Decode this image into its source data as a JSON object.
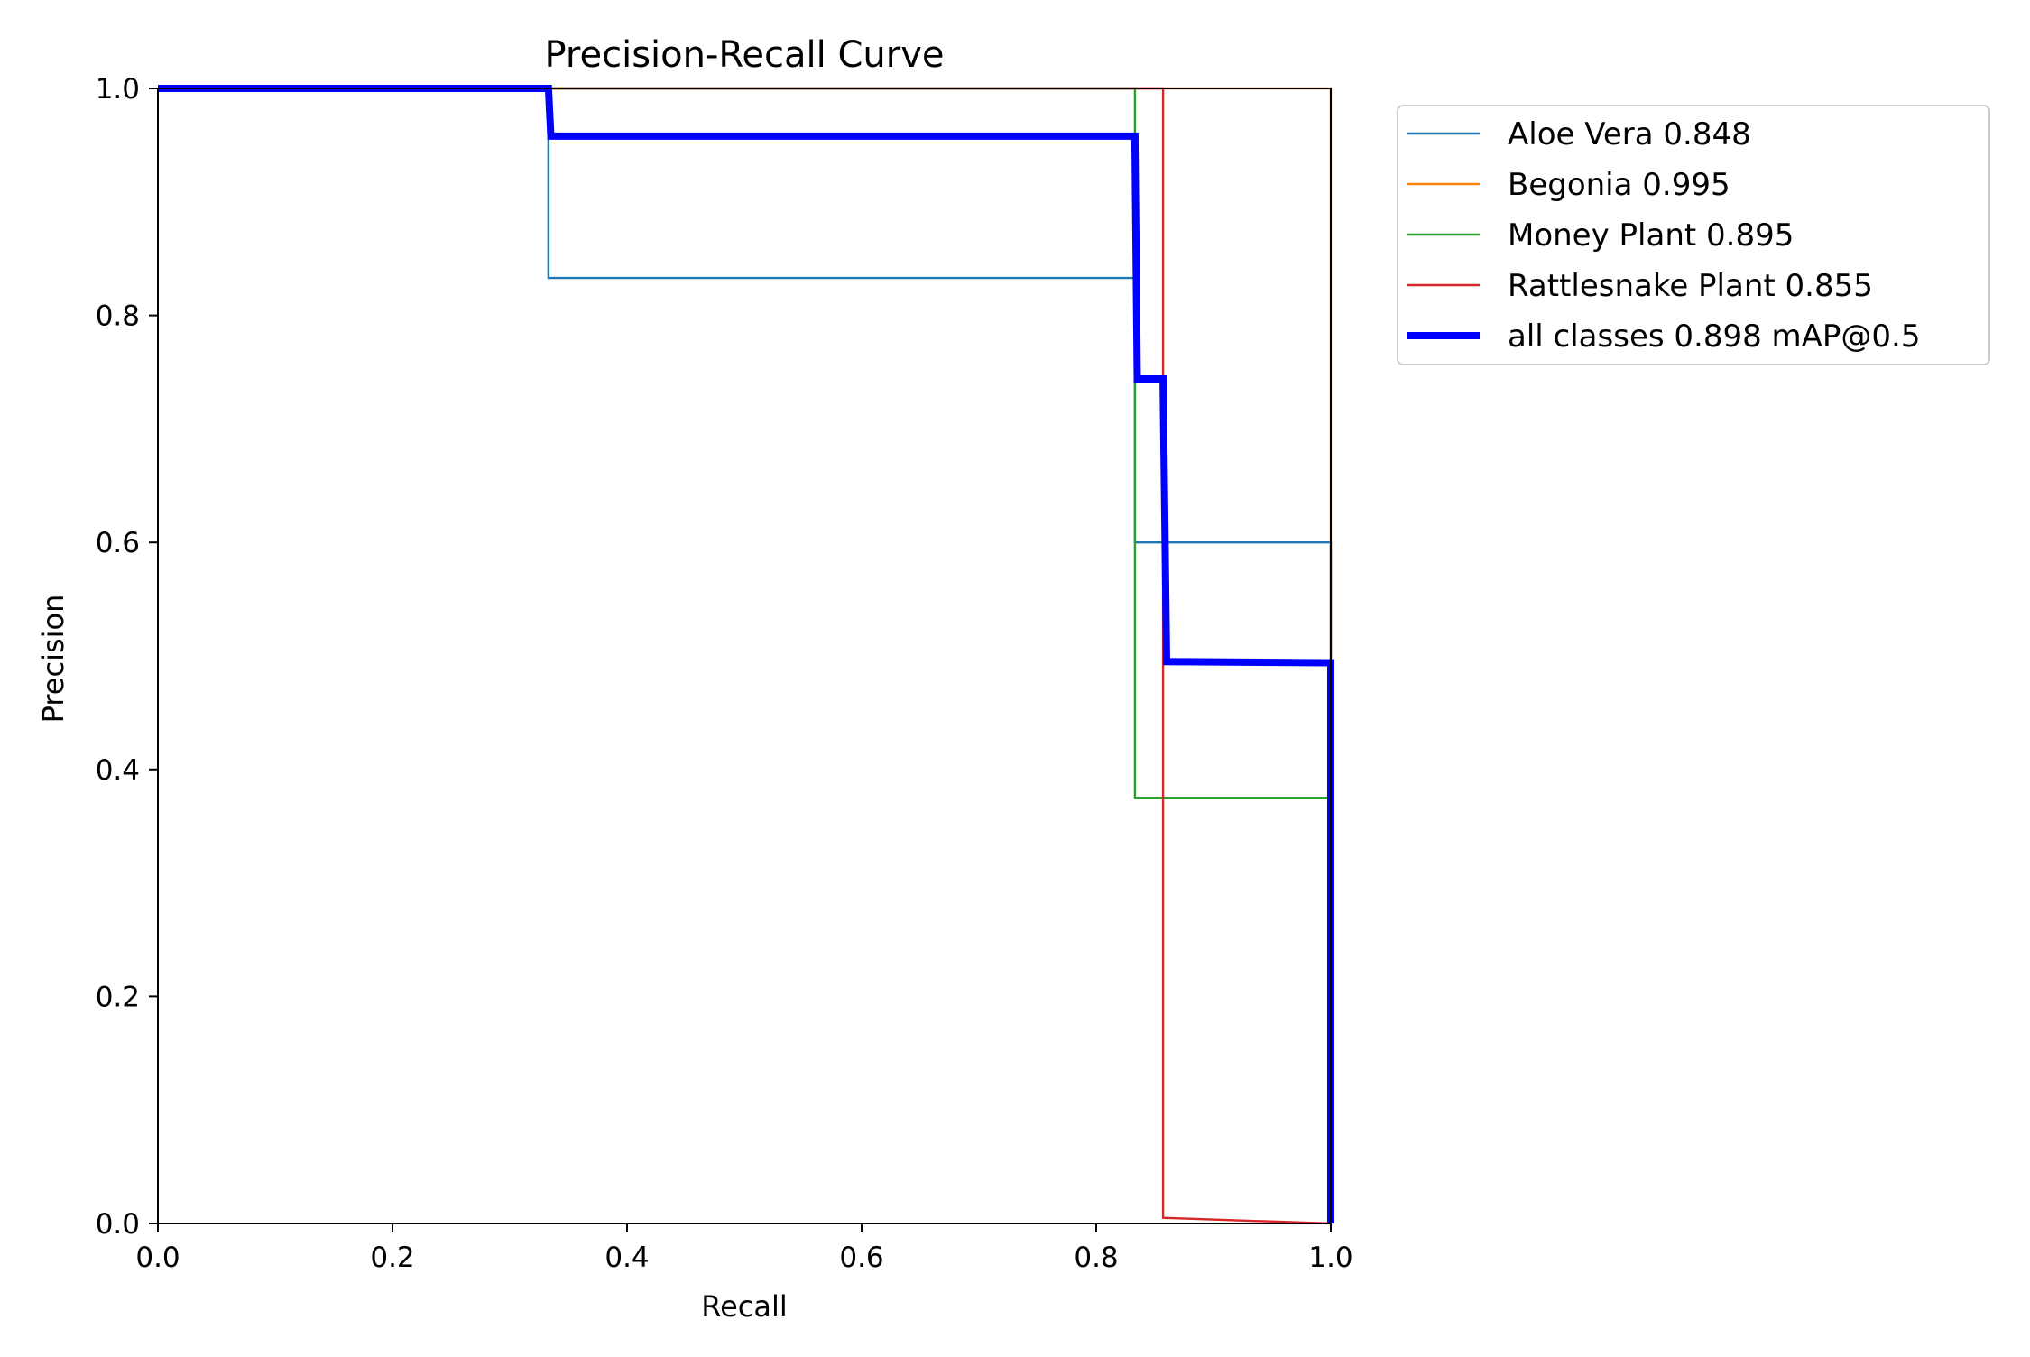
{
  "chart_data": {
    "type": "line",
    "title": "Precision-Recall Curve",
    "xlabel": "Recall",
    "ylabel": "Precision",
    "xlim": [
      0.0,
      1.0
    ],
    "ylim": [
      0.0,
      1.0
    ],
    "xticks": [
      "0.0",
      "0.2",
      "0.4",
      "0.6",
      "0.8",
      "1.0"
    ],
    "yticks": [
      "0.0",
      "0.2",
      "0.4",
      "0.6",
      "0.8",
      "1.0"
    ],
    "grid": false,
    "legend_position": "outside-right-top",
    "series": [
      {
        "name": "Aloe Vera 0.848",
        "color": "#1f77b4",
        "style": "thin",
        "x": [
          0.0,
          0.333,
          0.333,
          0.833,
          0.833,
          1.0,
          1.0
        ],
        "y": [
          1.0,
          1.0,
          0.833,
          0.833,
          0.6,
          0.6,
          0.0
        ]
      },
      {
        "name": "Begonia 0.995",
        "color": "#ff7f0e",
        "style": "thin",
        "x": [
          0.0,
          1.0,
          1.0
        ],
        "y": [
          1.0,
          1.0,
          0.0
        ]
      },
      {
        "name": "Money Plant 0.895",
        "color": "#2ca02c",
        "style": "thin",
        "x": [
          0.0,
          0.833,
          0.833,
          1.0,
          1.0
        ],
        "y": [
          1.0,
          1.0,
          0.375,
          0.375,
          0.0
        ]
      },
      {
        "name": "Rattlesnake Plant 0.855",
        "color": "#d62728",
        "style": "thin",
        "x": [
          0.0,
          0.857,
          0.857,
          1.0
        ],
        "y": [
          1.0,
          1.0,
          0.005,
          0.0
        ]
      },
      {
        "name": "all classes 0.898 mAP@0.5",
        "color": "#0000ff",
        "style": "thick",
        "x": [
          0.0,
          0.333,
          0.335,
          0.833,
          0.835,
          0.857,
          0.86,
          1.0,
          1.0
        ],
        "y": [
          1.0,
          1.0,
          0.958,
          0.958,
          0.744,
          0.744,
          0.495,
          0.494,
          0.0
        ]
      }
    ]
  }
}
